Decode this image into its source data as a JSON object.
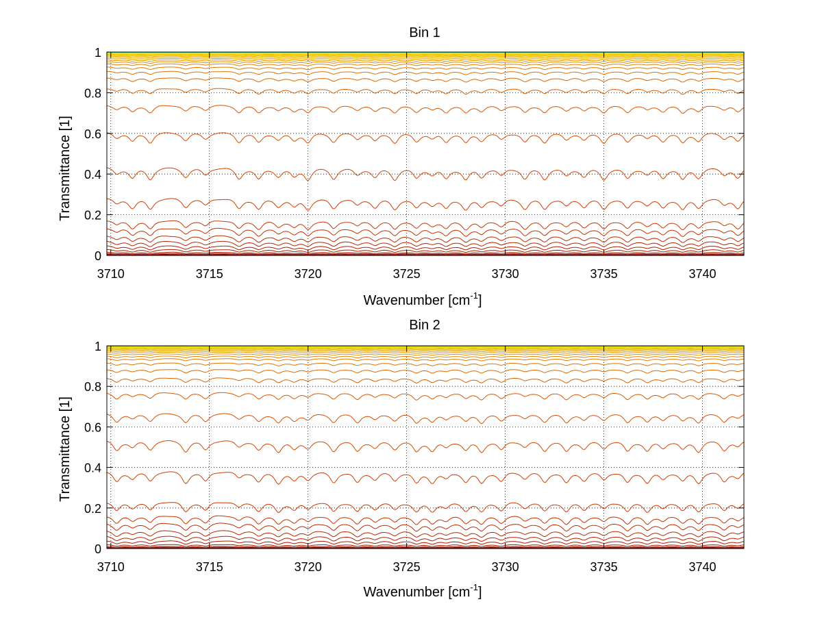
{
  "chart_data": [
    {
      "type": "line",
      "title": "Bin 1",
      "xlabel_main": "Wavenumber [cm",
      "xlabel_sup": "-1",
      "xlabel_end": "]",
      "ylabel": "Transmittance [1]",
      "xlim": [
        3709.8,
        3742.1
      ],
      "ylim": [
        0,
        1
      ],
      "xticks": [
        3710,
        3715,
        3720,
        3725,
        3730,
        3735,
        3740
      ],
      "yticks": [
        0,
        0.2,
        0.4,
        0.6,
        0.8,
        1
      ],
      "grid": true,
      "line_peaks": [
        0.002,
        0.004,
        0.007,
        0.012,
        0.02,
        0.035,
        0.055,
        0.08,
        0.11,
        0.15,
        0.19,
        0.3,
        0.45,
        0.62,
        0.75,
        0.83,
        0.88,
        0.91,
        0.93,
        0.945,
        0.955,
        0.963,
        0.97,
        0.976,
        0.981,
        0.985,
        0.988,
        0.991,
        0.993,
        0.995,
        0.996,
        0.997,
        0.998,
        0.9985,
        0.999,
        0.9993,
        0.9995,
        0.9997
      ],
      "absorption_lines": [
        3710.3,
        3711.1,
        3712.0,
        3713.8,
        3714.8,
        3716.5,
        3717.5,
        3718.5,
        3719.3,
        3720.0,
        3721.3,
        3722.5,
        3723.4,
        3724.4,
        3725.5,
        3726.3,
        3727.0,
        3728.0,
        3728.8,
        3729.8,
        3731.0,
        3732.0,
        3733.1,
        3734.0,
        3735.0,
        3736.2,
        3737.2,
        3738.0,
        3739.0,
        3739.8,
        3741.1,
        3741.8
      ]
    },
    {
      "type": "line",
      "title": "Bin 2",
      "xlabel_main": "Wavenumber [cm",
      "xlabel_sup": "-1",
      "xlabel_end": "]",
      "ylabel": "Transmittance [1]",
      "xlim": [
        3709.8,
        3742.1
      ],
      "ylim": [
        0,
        1
      ],
      "xticks": [
        3710,
        3715,
        3720,
        3725,
        3730,
        3735,
        3740
      ],
      "yticks": [
        0,
        0.2,
        0.4,
        0.6,
        0.8,
        1
      ],
      "grid": true,
      "line_peaks": [
        0.002,
        0.004,
        0.008,
        0.014,
        0.025,
        0.045,
        0.07,
        0.1,
        0.14,
        0.18,
        0.25,
        0.4,
        0.55,
        0.68,
        0.78,
        0.85,
        0.89,
        0.92,
        0.94,
        0.952,
        0.962,
        0.97,
        0.976,
        0.981,
        0.985,
        0.988,
        0.991,
        0.993,
        0.995,
        0.996,
        0.997,
        0.998,
        0.9985,
        0.999,
        0.9993,
        0.9995,
        0.9997
      ],
      "absorption_lines": [
        3710.3,
        3711.1,
        3712.0,
        3713.8,
        3714.8,
        3716.5,
        3717.5,
        3718.5,
        3719.3,
        3720.0,
        3721.3,
        3722.5,
        3723.4,
        3724.4,
        3725.5,
        3726.3,
        3727.0,
        3728.0,
        3728.8,
        3729.8,
        3731.0,
        3732.0,
        3733.1,
        3734.0,
        3735.0,
        3736.2,
        3737.2,
        3738.0,
        3739.0,
        3739.8,
        3741.1,
        3741.8
      ]
    }
  ]
}
